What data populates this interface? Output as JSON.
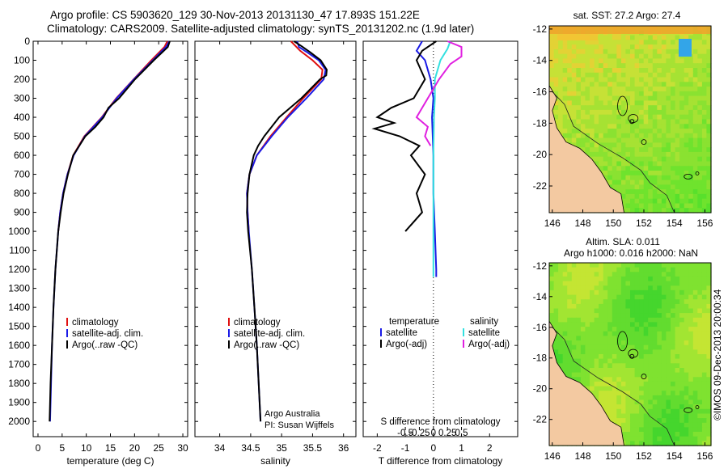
{
  "header": {
    "title_line1": "Argo profile: CS 5903620_129 30-Nov-2013 20131130_47 17.893S 151.22E",
    "title_line2": "Climatology: CARS2009. Satellite-adjusted climatology: synTS_20131202.nc (1.9d later)"
  },
  "colors": {
    "climatology": "#e01010",
    "satellite": "#1a1ae6",
    "argo": "#000000",
    "sal_satellite": "#33e0e0",
    "sal_argo": "#e020e0",
    "land": "#f3c9a1"
  },
  "chart_data": [
    {
      "id": "temperature",
      "type": "line",
      "xlabel": "temperature (deg C)",
      "ylabel": "",
      "xlim": [
        -1,
        31
      ],
      "ylim": [
        2080,
        0
      ],
      "xticks": [
        0,
        5,
        10,
        15,
        20,
        25,
        30
      ],
      "yticks": [
        0,
        100,
        200,
        300,
        400,
        500,
        600,
        700,
        800,
        900,
        1000,
        1100,
        1200,
        1300,
        1400,
        1500,
        1600,
        1700,
        1800,
        1900,
        2000
      ],
      "legend": [
        "climatology",
        "satellite-adj. clim.",
        "Argo(..raw -QC)"
      ],
      "series": [
        {
          "name": "climatology",
          "color": "#e01010",
          "depth": [
            0,
            30,
            100,
            200,
            300,
            400,
            500,
            600,
            700,
            800,
            900,
            1000
          ],
          "values": [
            26.8,
            26.2,
            23.5,
            19.8,
            16.2,
            13.2,
            9.6,
            7.3,
            6.1,
            5.2,
            4.6,
            4.2
          ]
        },
        {
          "name": "satellite-adj. clim.",
          "color": "#1a1ae6",
          "depth": [
            0,
            30,
            100,
            200,
            300,
            400,
            500,
            600,
            700,
            800,
            900,
            1000,
            1200,
            1400,
            1600,
            1800,
            2000
          ],
          "values": [
            27.2,
            26.5,
            23.8,
            19.9,
            16.3,
            13.3,
            9.7,
            7.4,
            6.1,
            5.2,
            4.6,
            4.2,
            3.6,
            3.2,
            2.9,
            2.7,
            2.5
          ]
        },
        {
          "name": "Argo(..raw -QC)",
          "color": "#000000",
          "depth": [
            0,
            30,
            100,
            200,
            300,
            350,
            400,
            450,
            500,
            600,
            700,
            800,
            900,
            1000,
            1200,
            1400,
            1600,
            1800,
            2000
          ],
          "values": [
            27.3,
            26.9,
            24.0,
            20.1,
            16.8,
            14.6,
            13.6,
            11.9,
            9.8,
            7.3,
            6.2,
            5.3,
            4.7,
            4.2,
            3.6,
            3.2,
            2.9,
            2.6,
            2.4
          ]
        }
      ]
    },
    {
      "id": "salinity",
      "type": "line",
      "xlabel": "salinity",
      "xlim": [
        33.6,
        36.2
      ],
      "ylim": [
        2080,
        0
      ],
      "xticks": [
        34,
        34.5,
        35,
        35.5,
        36
      ],
      "legend": [
        "climatology",
        "satellite-adj. clim.",
        "Argo(..raw -QC)"
      ],
      "annotation": [
        "Argo Australia",
        "PI: Susan Wijffels"
      ],
      "series": [
        {
          "name": "climatology",
          "color": "#e01010",
          "depth": [
            0,
            50,
            100,
            150,
            200,
            300,
            400,
            500,
            600,
            700,
            800,
            900,
            1000
          ],
          "values": [
            35.15,
            35.3,
            35.5,
            35.66,
            35.64,
            35.35,
            35.08,
            34.82,
            34.6,
            34.48,
            34.44,
            34.45,
            34.47
          ]
        },
        {
          "name": "satellite-adj. clim.",
          "color": "#1a1ae6",
          "depth": [
            0,
            30,
            60,
            100,
            150,
            200,
            300,
            400,
            500,
            600,
            700,
            800,
            900,
            1000,
            1200,
            1400,
            1600,
            1800,
            2000
          ],
          "values": [
            35.25,
            35.28,
            35.42,
            35.6,
            35.71,
            35.68,
            35.4,
            35.1,
            34.84,
            34.6,
            34.48,
            34.44,
            34.45,
            34.47,
            34.52,
            34.56,
            34.6,
            34.63,
            34.66
          ]
        },
        {
          "name": "Argo(..raw -QC)",
          "color": "#000000",
          "depth": [
            0,
            30,
            60,
            100,
            150,
            180,
            200,
            300,
            400,
            450,
            500,
            550,
            600,
            700,
            800,
            900,
            1000,
            1200,
            1400,
            1600,
            1800,
            2000
          ],
          "values": [
            35.2,
            35.34,
            35.47,
            35.63,
            35.73,
            35.72,
            35.62,
            35.32,
            34.96,
            34.84,
            34.72,
            34.62,
            34.55,
            34.48,
            34.45,
            34.44,
            34.46,
            34.52,
            34.56,
            34.6,
            34.63,
            34.66
          ]
        }
      ]
    },
    {
      "id": "difference",
      "type": "line",
      "xlabel": "T difference from climatology",
      "top_label": "S difference from climatology",
      "xlim": [
        -2.5,
        3.0
      ],
      "ylim": [
        2080,
        0
      ],
      "xticks": [
        -2,
        -1,
        0,
        1,
        2
      ],
      "top_ticks": [
        "-0.5",
        "-0.25",
        "0",
        "0.25",
        "0.5"
      ],
      "legend_header": [
        "temperature",
        "salinity"
      ],
      "legend": [
        "satellite",
        "Argo(-adj)",
        "satellite",
        "Argo(-adj)"
      ],
      "series": [
        {
          "name": "T satellite",
          "color": "#1a1ae6",
          "depth": [
            0,
            50,
            100,
            200,
            300,
            400,
            600,
            800,
            1000,
            1200,
            1240
          ],
          "values": [
            -0.4,
            -0.6,
            -0.3,
            -0.1,
            0.0,
            -0.05,
            0.0,
            0.0,
            0.05,
            0.1,
            0.1
          ]
        },
        {
          "name": "T Argo(-adj)",
          "color": "#000000",
          "depth": [
            0,
            50,
            100,
            200,
            300,
            350,
            400,
            430,
            460,
            500,
            550,
            600,
            700,
            800,
            900,
            1000
          ],
          "values": [
            0.1,
            -0.4,
            -0.6,
            -0.3,
            -0.7,
            -1.5,
            -2.0,
            -1.4,
            -2.1,
            -1.2,
            -0.5,
            -0.8,
            -0.3,
            -0.6,
            -0.4,
            -1.0
          ]
        },
        {
          "name": "S satellite",
          "color": "#33e0e0",
          "depth": [
            0,
            40,
            100,
            200,
            300,
            400,
            600,
            800,
            1000,
            1200,
            1240
          ],
          "values": [
            0.6,
            0.5,
            0.25,
            0.05,
            0.05,
            0.02,
            0.0,
            0.0,
            0.0,
            0.0,
            0.0
          ]
        },
        {
          "name": "S Argo(-adj)",
          "color": "#e020e0",
          "depth": [
            0,
            30,
            80,
            120,
            200,
            300,
            400,
            450,
            500,
            550
          ],
          "values": [
            0.5,
            1.0,
            1.0,
            0.6,
            0.2,
            -0.2,
            -0.6,
            -0.2,
            -0.3,
            -0.1
          ]
        }
      ]
    },
    {
      "id": "sst_map",
      "type": "heatmap",
      "title": "sat. SST: 27.2  Argo: 27.4",
      "xticks": [
        "146",
        "148",
        "150",
        "152",
        "154",
        "156"
      ],
      "yticks": [
        "-12",
        "-14",
        "-16",
        "-18",
        "-20",
        "-22"
      ]
    },
    {
      "id": "sla_map",
      "type": "heatmap",
      "title_line1": "Altim. SLA: 0.011",
      "title_line2": "Argo h1000: 0.016 h2000: NaN",
      "xticks": [
        "146",
        "148",
        "150",
        "152",
        "154",
        "156"
      ],
      "yticks": [
        "-12",
        "-14",
        "-16",
        "-18",
        "-20",
        "-22"
      ]
    }
  ],
  "footer": {
    "stamp": "©IMOS 09-Dec-2013 20:00:34"
  }
}
